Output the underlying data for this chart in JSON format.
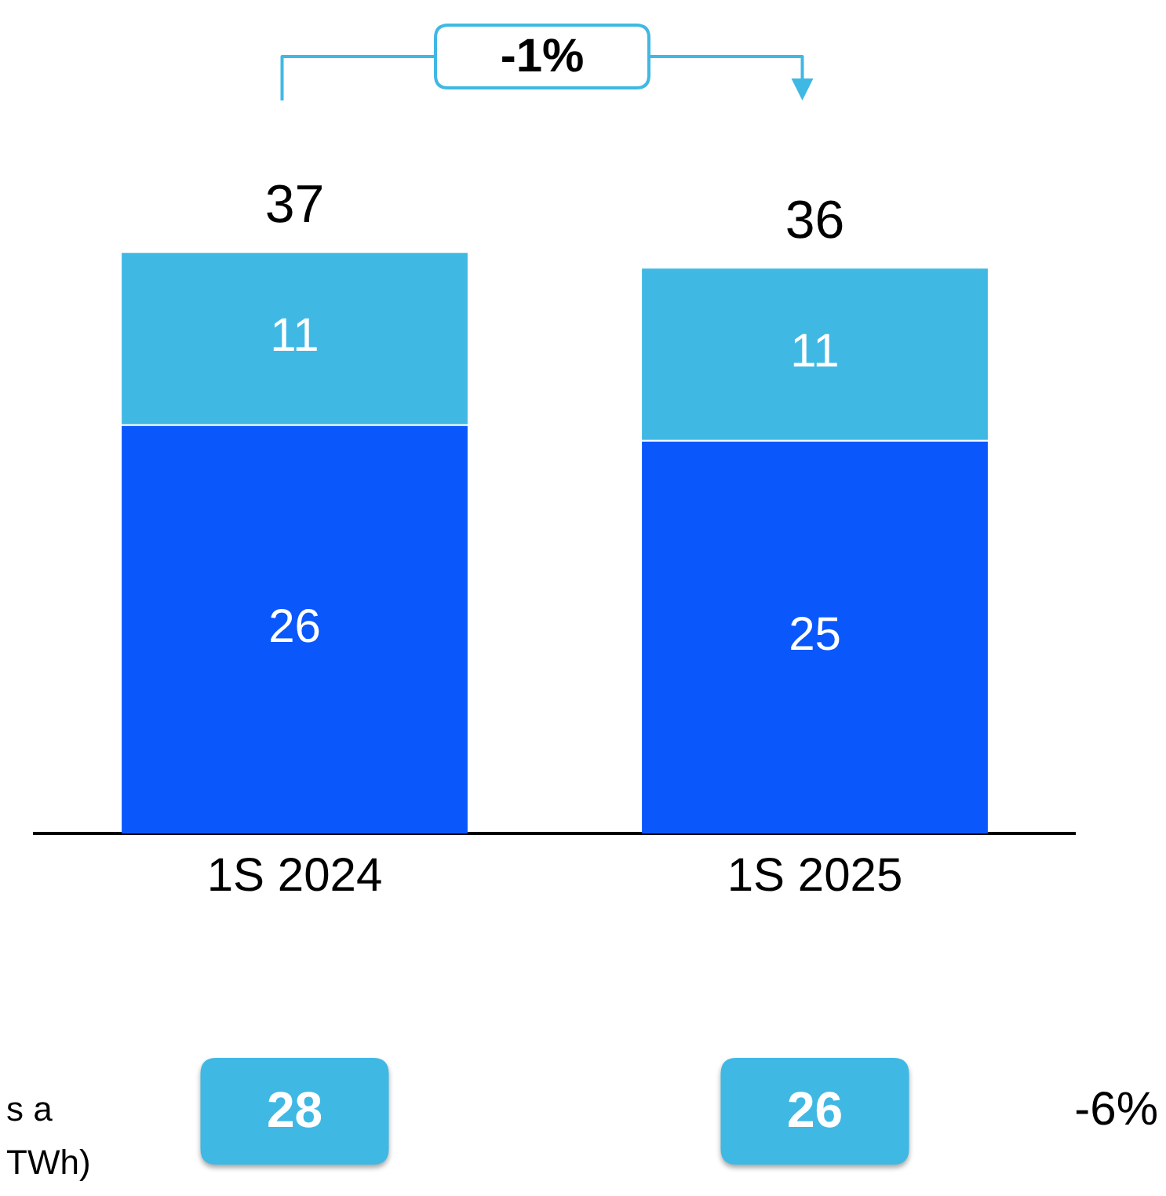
{
  "chart_data": {
    "type": "bar",
    "stacked": true,
    "data_labels": true,
    "categories": [
      "1S 2024",
      "1S 2025"
    ],
    "series": [
      {
        "color": "#0a57fc",
        "values": [
          26,
          25
        ]
      },
      {
        "color": "#40b8e4",
        "values": [
          11,
          11
        ]
      }
    ],
    "totals": [
      "37",
      "36"
    ],
    "annotations": [
      "-1%",
      "28",
      "26",
      "-6%",
      "s a",
      "TWh)"
    ]
  }
}
